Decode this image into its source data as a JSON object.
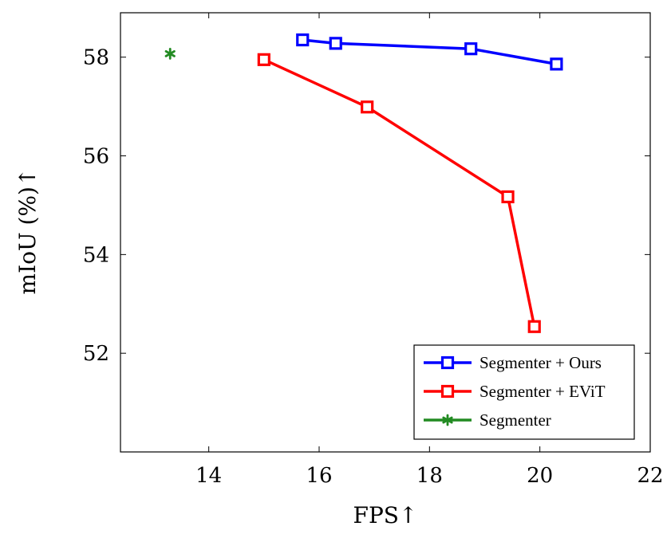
{
  "chart_data": {
    "type": "line",
    "xlabel": "FPS↑",
    "ylabel": "mIoU (%)↑",
    "xlim": [
      12.4,
      22
    ],
    "ylim": [
      50,
      58.9
    ],
    "xticks": [
      14,
      16,
      18,
      20,
      22
    ],
    "yticks": [
      52,
      54,
      56,
      58
    ],
    "grid": false,
    "legend_position": "bottom-right",
    "series": [
      {
        "name": "Segmenter + Ours",
        "color": "#0000ff",
        "marker": "square",
        "x": [
          15.7,
          16.3,
          18.75,
          20.3
        ],
        "y": [
          58.35,
          58.28,
          58.17,
          57.86
        ]
      },
      {
        "name": "Segmenter + EViT",
        "color": "#ff0000",
        "marker": "square",
        "x": [
          15.0,
          16.87,
          19.42,
          19.9
        ],
        "y": [
          57.95,
          56.99,
          55.17,
          52.54
        ]
      },
      {
        "name": "Segmenter",
        "color": "#228b22",
        "marker": "asterisk",
        "x": [
          13.3
        ],
        "y": [
          58.07
        ]
      }
    ]
  }
}
